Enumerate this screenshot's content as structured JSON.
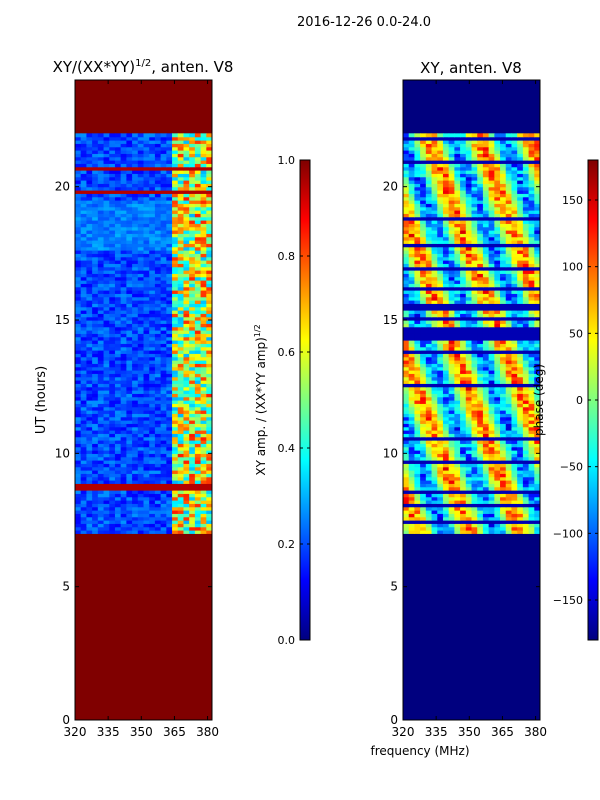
{
  "suptitle": "2016-12-26 0.0-24.0",
  "shared_xlabel": "frequency (MHz)",
  "chart_data": [
    {
      "type": "heatmap",
      "title_prefix": "XY/(XX*YY)",
      "title_sup": "1/2",
      "title_suffix": ", anten. V8",
      "ylabel": "UT (hours)",
      "x_range": [
        320,
        382
      ],
      "y_range": [
        0,
        24
      ],
      "x_ticks": [
        320,
        335,
        350,
        365,
        380
      ],
      "y_ticks": [
        0,
        5,
        10,
        15,
        20
      ],
      "data_time_range_hours": [
        7.0,
        22.0
      ],
      "data_freq_range_mhz": [
        320,
        382
      ],
      "fill_value_color": "#800000",
      "colorbar": {
        "label_prefix": "XY amp. / (XX*YY amp)",
        "label_sup": "1/2",
        "range": [
          0.0,
          1.0
        ],
        "ticks": [
          0.0,
          0.2,
          0.4,
          0.6,
          0.8,
          1.0
        ],
        "tick_labels": [
          "0.0",
          "0.2",
          "0.4",
          "0.6",
          "0.8",
          "1.0"
        ],
        "colormap": "jet"
      }
    },
    {
      "type": "heatmap",
      "title": "XY, anten. V8",
      "x_range": [
        320,
        382
      ],
      "y_range": [
        0,
        24
      ],
      "x_ticks": [
        320,
        335,
        350,
        365,
        380
      ],
      "y_ticks": [
        0,
        5,
        10,
        15,
        20
      ],
      "data_time_range_hours": [
        7.0,
        22.0
      ],
      "data_freq_range_mhz": [
        320,
        382
      ],
      "fill_value_color": "#00007f",
      "colorbar": {
        "label": "phase (deg)",
        "range": [
          -180,
          180
        ],
        "ticks": [
          -150,
          -100,
          -50,
          0,
          50,
          100,
          150
        ],
        "tick_labels": [
          "−150",
          "−100",
          "−50",
          "0",
          "50",
          "100",
          "150"
        ],
        "colormap": "jet"
      }
    }
  ],
  "colors": {
    "jet_stops": [
      "#00007f",
      "#0000ff",
      "#00ffff",
      "#ffff00",
      "#ff0000",
      "#7f0000"
    ]
  }
}
